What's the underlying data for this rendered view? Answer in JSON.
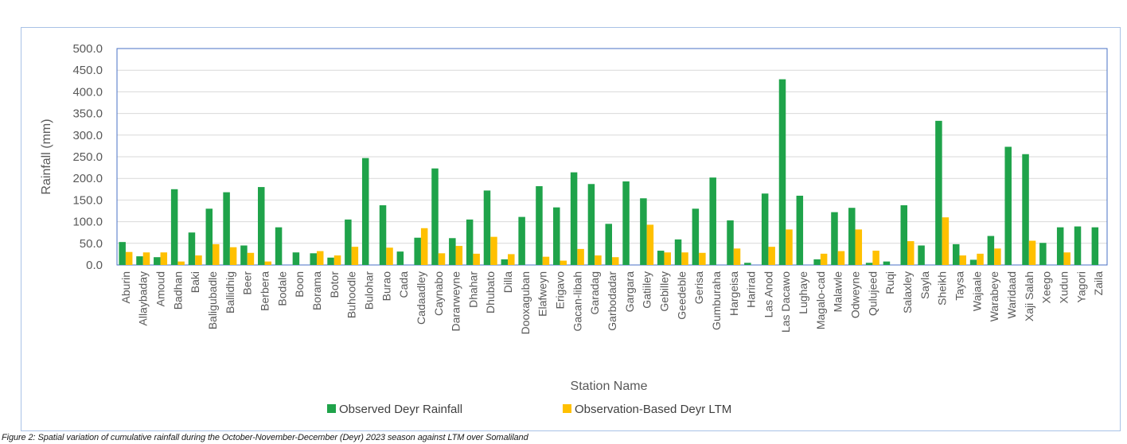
{
  "chart_data": {
    "type": "bar",
    "title": "",
    "xlabel": "Station Name",
    "ylabel": "Rainfall (mm)",
    "ylim": [
      0,
      500
    ],
    "ytick_step": 50,
    "ytick_labels": [
      "0.0",
      "50.0",
      "100.0",
      "150.0",
      "200.0",
      "250.0",
      "300.0",
      "350.0",
      "400.0",
      "450.0",
      "500.0"
    ],
    "grid": true,
    "legend_position": "bottom",
    "categories": [
      "Aburin",
      "Allaybaday",
      "Amoud",
      "Badhan",
      "Baki",
      "Baligubadle",
      "Ballidhig",
      "Beer",
      "Berbera",
      "Bodale",
      "Boon",
      "Borama",
      "Botor",
      "Buhoodle",
      "Bulohar",
      "Burao",
      "Cada",
      "Cadaadley",
      "Caynabo",
      "Dararweyne",
      "Dhahar",
      "Dhubato",
      "Dilla",
      "Dooxaguban",
      "Elafweyn",
      "Erigavo",
      "Gacan-libah",
      "Garadag",
      "Garbodadar",
      "Gargara",
      "Gatiiley",
      "Gebilley",
      "Geedeble",
      "Gerisa",
      "Gumburaha",
      "Hargeisa",
      "Harirad",
      "Las Anod",
      "Las Dacawo",
      "Lughaye",
      "Magalo-cad",
      "Malawle",
      "Odweyne",
      "Qulujeed",
      "Ruqi",
      "Salaxley",
      "Sayla",
      "Sheikh",
      "Taysa",
      "Wajaale",
      "Warabeye",
      "Waridaad",
      "Xaji Salah",
      "Xeego",
      "Xudun",
      "Yagori",
      "Zaila"
    ],
    "series": [
      {
        "name": "Observed Deyr Rainfall",
        "color": "#1fa34a",
        "values": [
          53,
          20,
          18,
          175,
          75,
          130,
          168,
          45,
          180,
          87,
          29,
          27,
          17,
          105,
          247,
          138,
          31,
          63,
          223,
          62,
          105,
          172,
          13,
          111,
          182,
          133,
          214,
          187,
          95,
          193,
          154,
          33,
          59,
          130,
          202,
          103,
          5,
          165,
          429,
          160,
          13,
          122,
          132,
          5,
          8,
          138,
          45,
          333,
          48,
          12,
          67,
          273,
          256,
          51,
          87,
          89,
          87
        ]
      },
      {
        "name": "Observation-Based Deyr LTM",
        "color": "#ffc000",
        "values": [
          30,
          29,
          29,
          8,
          22,
          48,
          41,
          28,
          8,
          0,
          0,
          32,
          22,
          42,
          0,
          40,
          0,
          85,
          27,
          44,
          26,
          65,
          25,
          0,
          19,
          10,
          37,
          22,
          18,
          0,
          93,
          29,
          29,
          28,
          0,
          38,
          0,
          42,
          82,
          0,
          26,
          32,
          82,
          33,
          0,
          55,
          0,
          110,
          22,
          26,
          38,
          0,
          56,
          0,
          29,
          0,
          0
        ]
      }
    ]
  },
  "caption": "Figure 2: Spatial variation of cumulative rainfall during the October-November-December (Deyr) 2023 season against LTM over Somaliland"
}
